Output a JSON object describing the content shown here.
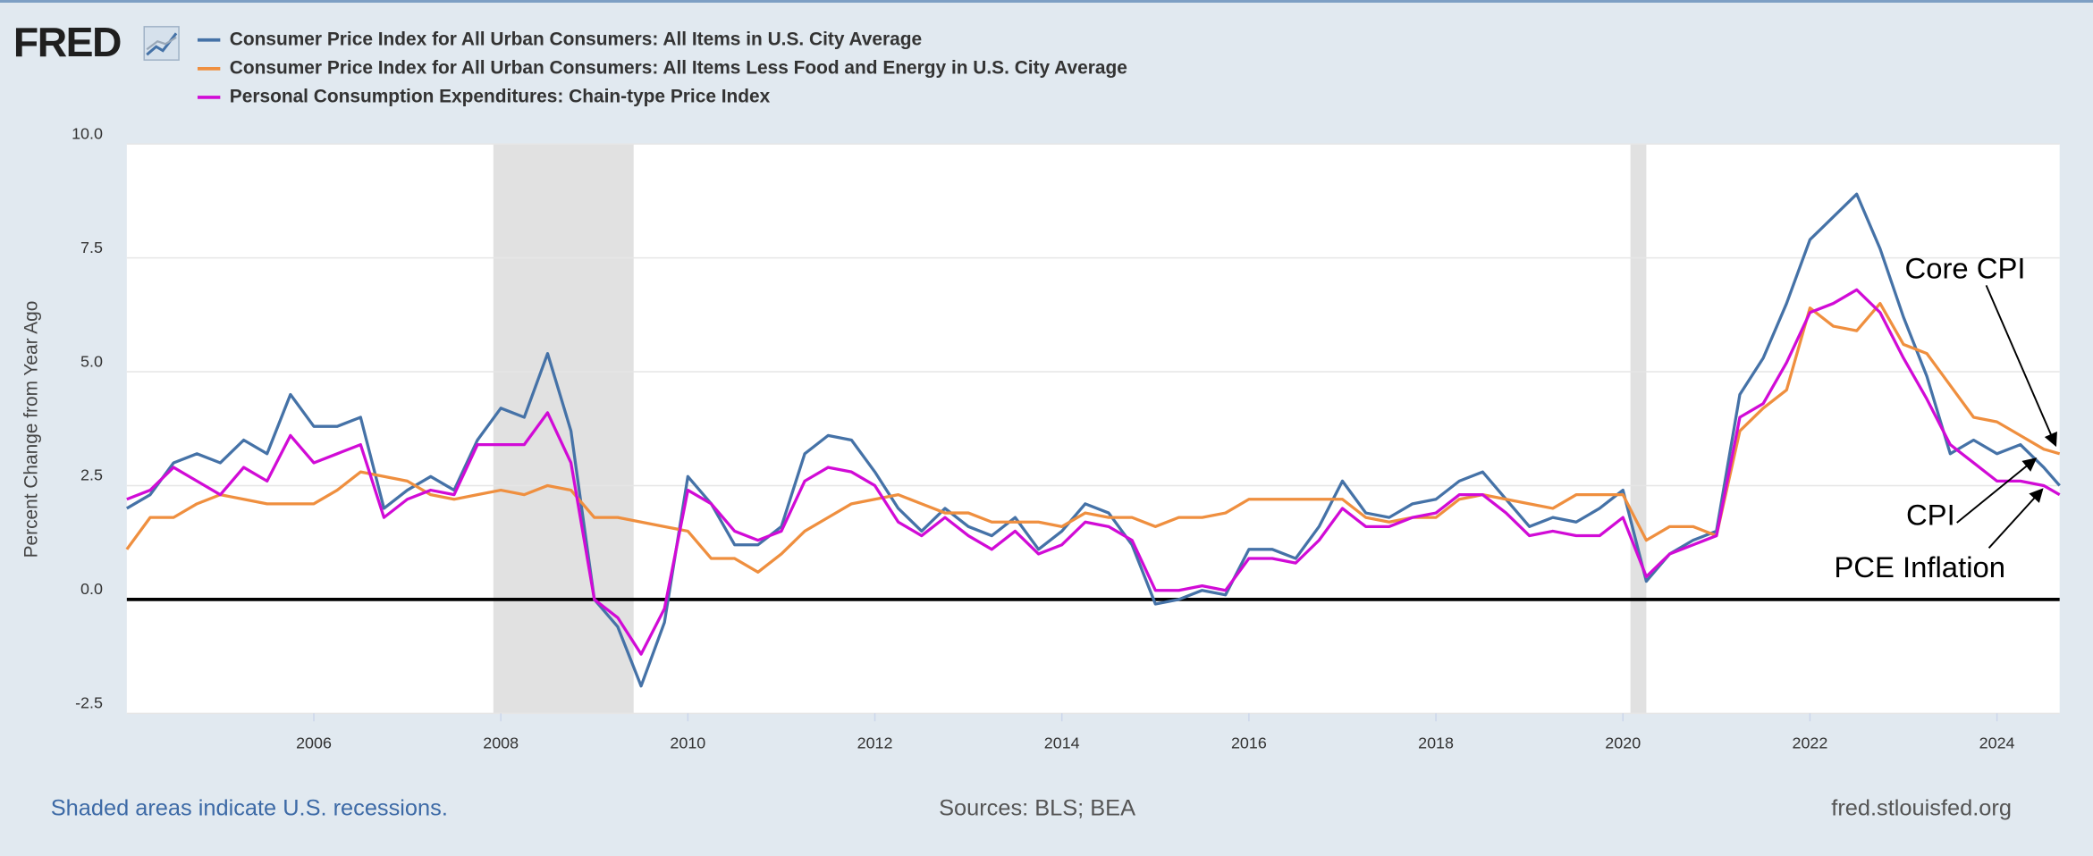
{
  "chart_data": {
    "type": "line",
    "logo": "FRED",
    "y_axis_label": "Percent Change from Year Ago",
    "x": [
      2004,
      2004.25,
      2004.5,
      2004.75,
      2005,
      2005.25,
      2005.5,
      2005.75,
      2006,
      2006.25,
      2006.5,
      2006.75,
      2007,
      2007.25,
      2007.5,
      2007.75,
      2008,
      2008.25,
      2008.5,
      2008.75,
      2009,
      2009.25,
      2009.5,
      2009.75,
      2010,
      2010.25,
      2010.5,
      2010.75,
      2011,
      2011.25,
      2011.5,
      2011.75,
      2012,
      2012.25,
      2012.5,
      2012.75,
      2013,
      2013.25,
      2013.5,
      2013.75,
      2014,
      2014.25,
      2014.5,
      2014.75,
      2015,
      2015.25,
      2015.5,
      2015.75,
      2016,
      2016.25,
      2016.5,
      2016.75,
      2017,
      2017.25,
      2017.5,
      2017.75,
      2018,
      2018.25,
      2018.5,
      2018.75,
      2019,
      2019.25,
      2019.5,
      2019.75,
      2020,
      2020.25,
      2020.5,
      2020.75,
      2021,
      2021.25,
      2021.5,
      2021.75,
      2022,
      2022.25,
      2022.5,
      2022.75,
      2023,
      2023.25,
      2023.5,
      2023.75,
      2024,
      2024.25,
      2024.5,
      2024.67
    ],
    "series": [
      {
        "name": "Consumer Price Index for All Urban Consumers: All Items in U.S. City Average",
        "color": "#4572a7",
        "values": [
          2.0,
          2.3,
          3.0,
          3.2,
          3.0,
          3.5,
          3.2,
          4.5,
          3.8,
          3.8,
          4.0,
          2.0,
          2.4,
          2.7,
          2.4,
          3.5,
          4.2,
          4.0,
          5.4,
          3.7,
          0.0,
          -0.6,
          -1.9,
          -0.5,
          2.7,
          2.1,
          1.2,
          1.2,
          1.6,
          3.2,
          3.6,
          3.5,
          2.8,
          2.0,
          1.5,
          2.0,
          1.6,
          1.4,
          1.8,
          1.1,
          1.5,
          2.1,
          1.9,
          1.2,
          -0.1,
          0.0,
          0.2,
          0.1,
          1.1,
          1.1,
          0.9,
          1.6,
          2.6,
          1.9,
          1.8,
          2.1,
          2.2,
          2.6,
          2.8,
          2.2,
          1.6,
          1.8,
          1.7,
          2.0,
          2.4,
          0.4,
          1.0,
          1.3,
          1.5,
          4.5,
          5.3,
          6.5,
          7.9,
          8.4,
          8.9,
          7.7,
          6.2,
          4.9,
          3.2,
          3.5,
          3.2,
          3.4,
          2.9,
          2.5
        ]
      },
      {
        "name": "Consumer Price Index for All Urban Consumers: All Items Less Food and Energy in U.S. City Average",
        "color": "#ef8f3f",
        "values": [
          1.1,
          1.8,
          1.8,
          2.1,
          2.3,
          2.2,
          2.1,
          2.1,
          2.1,
          2.4,
          2.8,
          2.7,
          2.6,
          2.3,
          2.2,
          2.3,
          2.4,
          2.3,
          2.5,
          2.4,
          1.8,
          1.8,
          1.7,
          1.6,
          1.5,
          0.9,
          0.9,
          0.6,
          1.0,
          1.5,
          1.8,
          2.1,
          2.2,
          2.3,
          2.1,
          1.9,
          1.9,
          1.7,
          1.7,
          1.7,
          1.6,
          1.9,
          1.8,
          1.8,
          1.6,
          1.8,
          1.8,
          1.9,
          2.2,
          2.2,
          2.2,
          2.2,
          2.2,
          1.8,
          1.7,
          1.8,
          1.8,
          2.2,
          2.3,
          2.2,
          2.1,
          2.0,
          2.3,
          2.3,
          2.3,
          1.3,
          1.6,
          1.6,
          1.4,
          3.7,
          4.2,
          4.6,
          6.4,
          6.0,
          5.9,
          6.5,
          5.6,
          5.4,
          4.7,
          4.0,
          3.9,
          3.6,
          3.3,
          3.2
        ]
      },
      {
        "name": "Personal Consumption Expenditures: Chain-type Price Index",
        "color": "#d10bd6",
        "values": [
          2.2,
          2.4,
          2.9,
          2.6,
          2.3,
          2.9,
          2.6,
          3.6,
          3.0,
          3.2,
          3.4,
          1.8,
          2.2,
          2.4,
          2.3,
          3.4,
          3.4,
          3.4,
          4.1,
          3.0,
          0.0,
          -0.4,
          -1.2,
          -0.2,
          2.4,
          2.1,
          1.5,
          1.3,
          1.5,
          2.6,
          2.9,
          2.8,
          2.5,
          1.7,
          1.4,
          1.8,
          1.4,
          1.1,
          1.5,
          1.0,
          1.2,
          1.7,
          1.6,
          1.3,
          0.2,
          0.2,
          0.3,
          0.2,
          0.9,
          0.9,
          0.8,
          1.3,
          2.0,
          1.6,
          1.6,
          1.8,
          1.9,
          2.3,
          2.3,
          1.9,
          1.4,
          1.5,
          1.4,
          1.4,
          1.8,
          0.5,
          1.0,
          1.2,
          1.4,
          4.0,
          4.3,
          5.2,
          6.3,
          6.5,
          6.8,
          6.3,
          5.3,
          4.4,
          3.4,
          3.0,
          2.6,
          2.6,
          2.5,
          2.3
        ]
      }
    ],
    "recessions": [
      [
        2007.92,
        2009.42
      ],
      [
        2020.08,
        2020.25
      ]
    ],
    "xlim": [
      2004,
      2024.67
    ],
    "xticks": [
      2006,
      2008,
      2010,
      2012,
      2014,
      2016,
      2018,
      2020,
      2022,
      2024
    ],
    "ylim": [
      -2.5,
      10
    ],
    "yticks": [
      -2.5,
      {
        "value": 0,
        "label": "0.0"
      },
      2.5,
      {
        "value": 5,
        "label": "5.0"
      },
      7.5,
      {
        "value": 10,
        "label": "10.0"
      }
    ],
    "grid": true,
    "annotations": [
      "Core CPI",
      "CPI",
      "PCE Inflation"
    ],
    "footnote": "Shaded areas indicate U.S. recessions.",
    "sources": "Sources: BLS; BEA",
    "site": "fred.stlouisfed.org"
  }
}
